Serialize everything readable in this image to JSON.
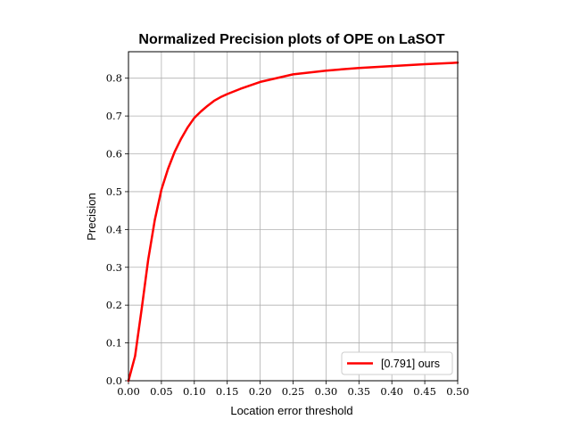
{
  "chart_data": {
    "type": "line",
    "title": "Normalized Precision plots of OPE on LaSOT",
    "xlabel": "Location error threshold",
    "ylabel": "Precision",
    "xlim": [
      0,
      0.5
    ],
    "ylim": [
      0,
      0.87
    ],
    "xticks": [
      "0.00",
      "0.05",
      "0.10",
      "0.15",
      "0.20",
      "0.25",
      "0.30",
      "0.35",
      "0.40",
      "0.45",
      "0.50"
    ],
    "yticks": [
      "0.0",
      "0.1",
      "0.2",
      "0.3",
      "0.4",
      "0.5",
      "0.6",
      "0.7",
      "0.8"
    ],
    "grid": true,
    "legend_position": "bottom-right",
    "series": [
      {
        "name": "[0.791] ours",
        "color": "#ff0000",
        "x": [
          0.0,
          0.01,
          0.02,
          0.03,
          0.04,
          0.05,
          0.06,
          0.07,
          0.08,
          0.09,
          0.1,
          0.11,
          0.12,
          0.13,
          0.14,
          0.15,
          0.17,
          0.2,
          0.25,
          0.3,
          0.35,
          0.4,
          0.45,
          0.5
        ],
        "y": [
          0.0,
          0.065,
          0.19,
          0.32,
          0.425,
          0.505,
          0.56,
          0.605,
          0.64,
          0.67,
          0.695,
          0.712,
          0.727,
          0.74,
          0.75,
          0.758,
          0.772,
          0.79,
          0.81,
          0.82,
          0.827,
          0.832,
          0.837,
          0.841
        ]
      }
    ]
  }
}
